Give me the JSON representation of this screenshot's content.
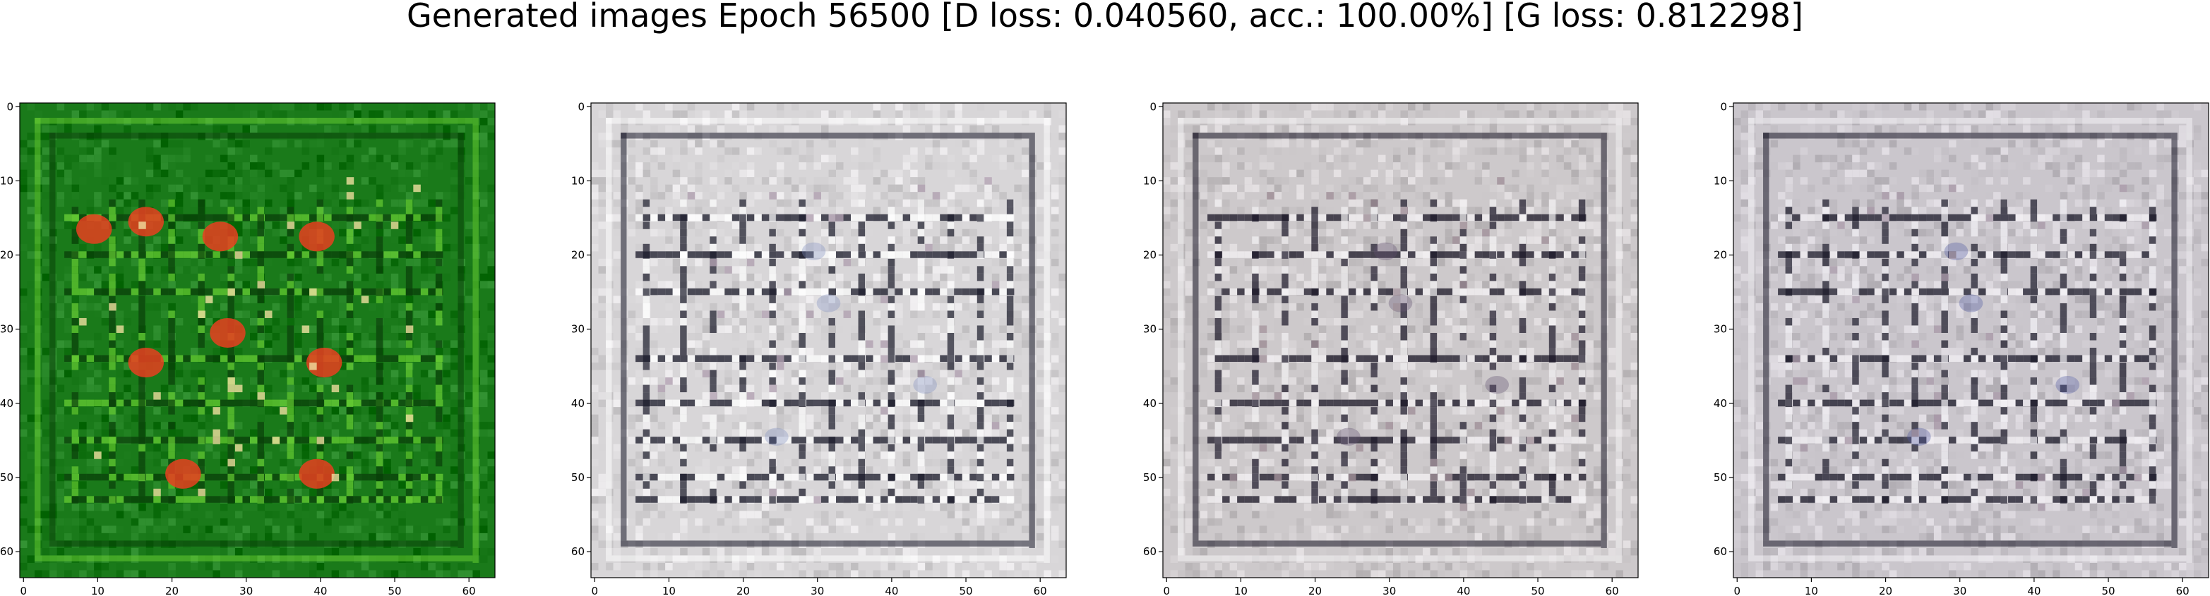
{
  "figure": {
    "title": "Generated images Epoch 56500 [D loss: 0.040560, acc.: 100.00%] [G loss: 0.812298]"
  },
  "panels": [
    {
      "name": "generated-image-1",
      "palette": "green",
      "background": "#1a7a1a",
      "line_dark": "#0a3f0a",
      "line_light": "#66cc33",
      "accent": "#e84020",
      "accent2": "#f0e0a0"
    },
    {
      "name": "generated-image-2",
      "palette": "light-gray",
      "background": "#d8d6d8",
      "line_dark": "#1a1a2a",
      "line_light": "#ffffff",
      "accent": "#8090c0",
      "accent2": "#b0a0b0"
    },
    {
      "name": "generated-image-3",
      "palette": "gray-grid",
      "background": "#cdc9cb",
      "line_dark": "#1a1626",
      "line_light": "#f4f2f4",
      "accent": "#605070",
      "accent2": "#a09098"
    },
    {
      "name": "generated-image-4",
      "palette": "gray-grid",
      "background": "#cac6cc",
      "line_dark": "#1a1828",
      "line_light": "#f4f2f6",
      "accent": "#5058a0",
      "accent2": "#a898a8"
    }
  ],
  "axes": {
    "x_ticks": [
      "0",
      "10",
      "20",
      "30",
      "40",
      "50",
      "60"
    ],
    "y_ticks": [
      "0",
      "10",
      "20",
      "30",
      "40",
      "50",
      "60"
    ],
    "xlim": [
      -0.5,
      63.5
    ],
    "ylim": [
      63.5,
      -0.5
    ]
  }
}
